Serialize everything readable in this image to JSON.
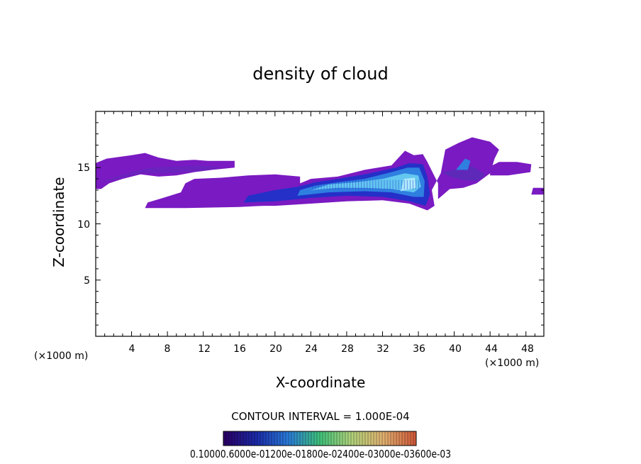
{
  "chart_data": {
    "type": "heatmap",
    "title": "density of cloud",
    "xlabel": "X-coordinate",
    "ylabel": "Z-coordinate",
    "x_unit": "(×1000 m)",
    "xlim": [
      0,
      50
    ],
    "ylim": [
      0,
      20
    ],
    "x_ticks": [
      "4",
      "8",
      "12",
      "16",
      "20",
      "24",
      "28",
      "32",
      "36",
      "40",
      "44",
      "48"
    ],
    "y_ticks": [
      "5",
      "10",
      "15"
    ],
    "contour_interval_label": "CONTOUR INTERVAL = 1.000E-04",
    "colorbar_labels": [
      "0.1000",
      "0.6000e-04",
      "0.1200e-03",
      "0.1800e-03",
      "0.2400e-03",
      "0.3000e-03",
      "0.3600e-03"
    ],
    "colorbar_text": "0.10000.6000e-01200e-01800e-02400e-03000e-03600e-03",
    "levels": [
      1e-05,
      0.0001,
      0.0002,
      0.0003
    ],
    "cloud_regions": [
      {
        "name": "upper-left layer",
        "x_range": [
          0,
          15.5
        ],
        "z_range": [
          13.0,
          16.2
        ],
        "level": "low"
      },
      {
        "name": "lower-left layer",
        "x_range": [
          5.5,
          22.5
        ],
        "z_range": [
          11.4,
          14.3
        ],
        "level": "low"
      },
      {
        "name": "main anvil",
        "x_range": [
          16,
          37.5
        ],
        "z_range": [
          11.5,
          15.5
        ],
        "level": "medium-high"
      },
      {
        "name": "right top",
        "x_range": [
          36.5,
          45
        ],
        "z_range": [
          12.5,
          17.7
        ],
        "level": "low-medium"
      },
      {
        "name": "right extension",
        "x_range": [
          44,
          48.5
        ],
        "z_range": [
          14.2,
          15.4
        ],
        "level": "low"
      },
      {
        "name": "far right",
        "x_range": [
          48.5,
          50
        ],
        "z_range": [
          12.6,
          13.2
        ],
        "level": "low"
      }
    ]
  },
  "colors": {
    "low": "#7a1ac2",
    "low_medium": "#5b2bb8",
    "medium": "#2430c8",
    "medium_high": "#2f7fe0",
    "high": "#63c7f0",
    "peak": "#b8f0ff",
    "colorbar_stops": [
      "#2a0066",
      "#1a2aa8",
      "#2a7ad8",
      "#3fc07a",
      "#b0d27a",
      "#e0b070",
      "#d05a3a"
    ]
  }
}
